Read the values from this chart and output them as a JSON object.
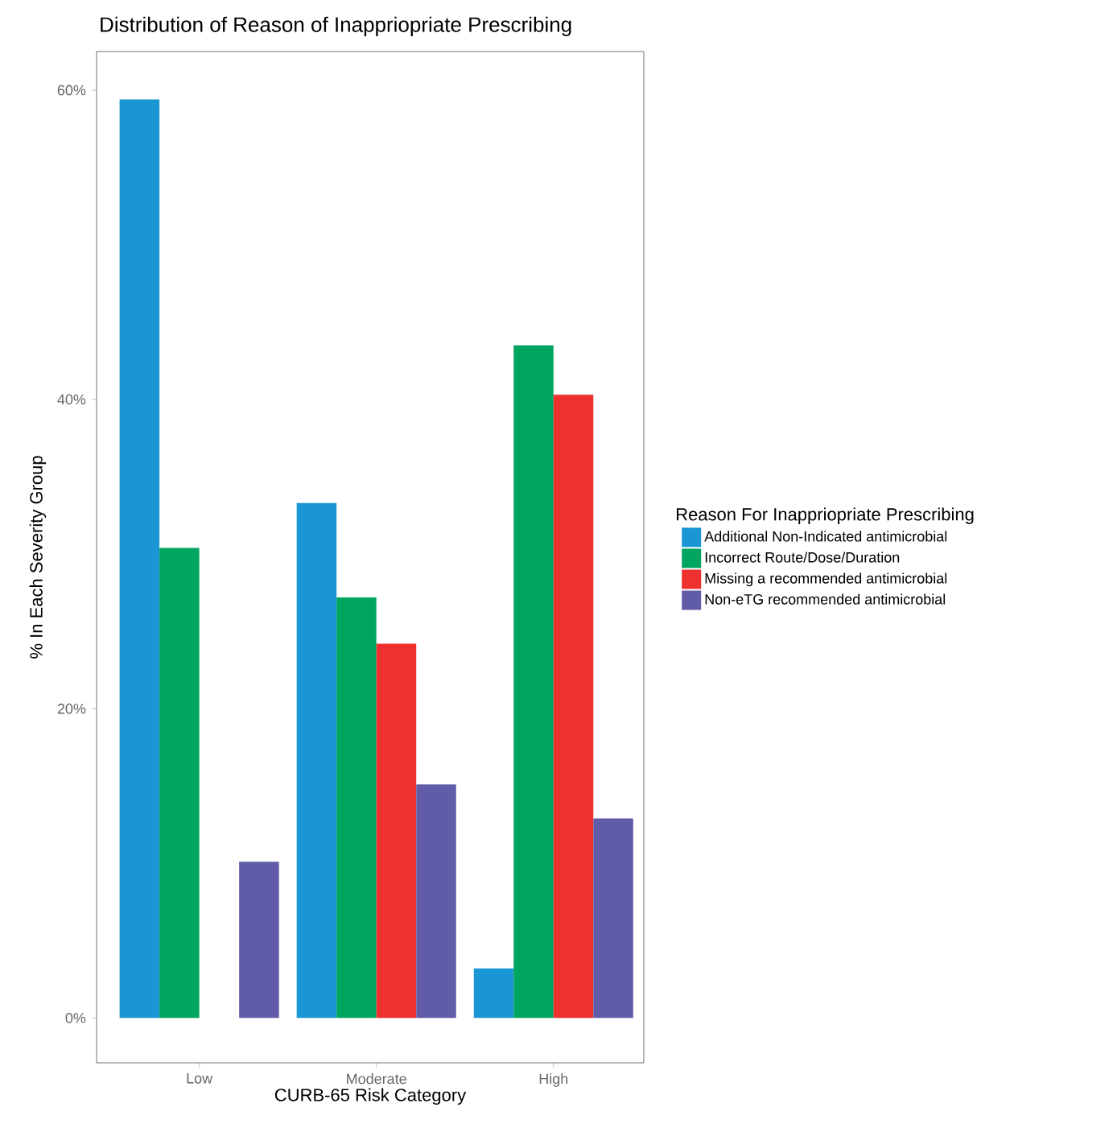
{
  "chart_data": {
    "type": "bar",
    "title": "Distribution of Reason of Inappriopriate Prescribing",
    "xlabel": "CURB-65 Risk Category",
    "ylabel": "% In Each Severity Group",
    "legend_title": "Reason For Inappriopriate Prescribing",
    "categories": [
      "Low",
      "Moderate",
      "High"
    ],
    "series": [
      {
        "name": "Additional Non-Indicated antimicrobial",
        "color": "#1a96d4",
        "values": [
          59.4,
          33.3,
          3.2
        ]
      },
      {
        "name": "Incorrect Route/Dose/Duration",
        "color": "#00a560",
        "values": [
          30.4,
          27.2,
          43.5
        ]
      },
      {
        "name": "Missing a recommended antimicrobial",
        "color": "#ec312f",
        "values": [
          null,
          24.2,
          40.3
        ]
      },
      {
        "name": "Non-eTG recommended antimicrobial",
        "color": "#605ca8",
        "values": [
          10.1,
          15.1,
          12.9
        ]
      }
    ],
    "ylim": [
      -2.9,
      62.5
    ],
    "yticks": [
      {
        "value": 0,
        "label": "0%"
      },
      {
        "value": 20,
        "label": "20%"
      },
      {
        "value": 40,
        "label": "40%"
      },
      {
        "value": 60,
        "label": "60%"
      }
    ],
    "grid": false,
    "legend": "right"
  }
}
